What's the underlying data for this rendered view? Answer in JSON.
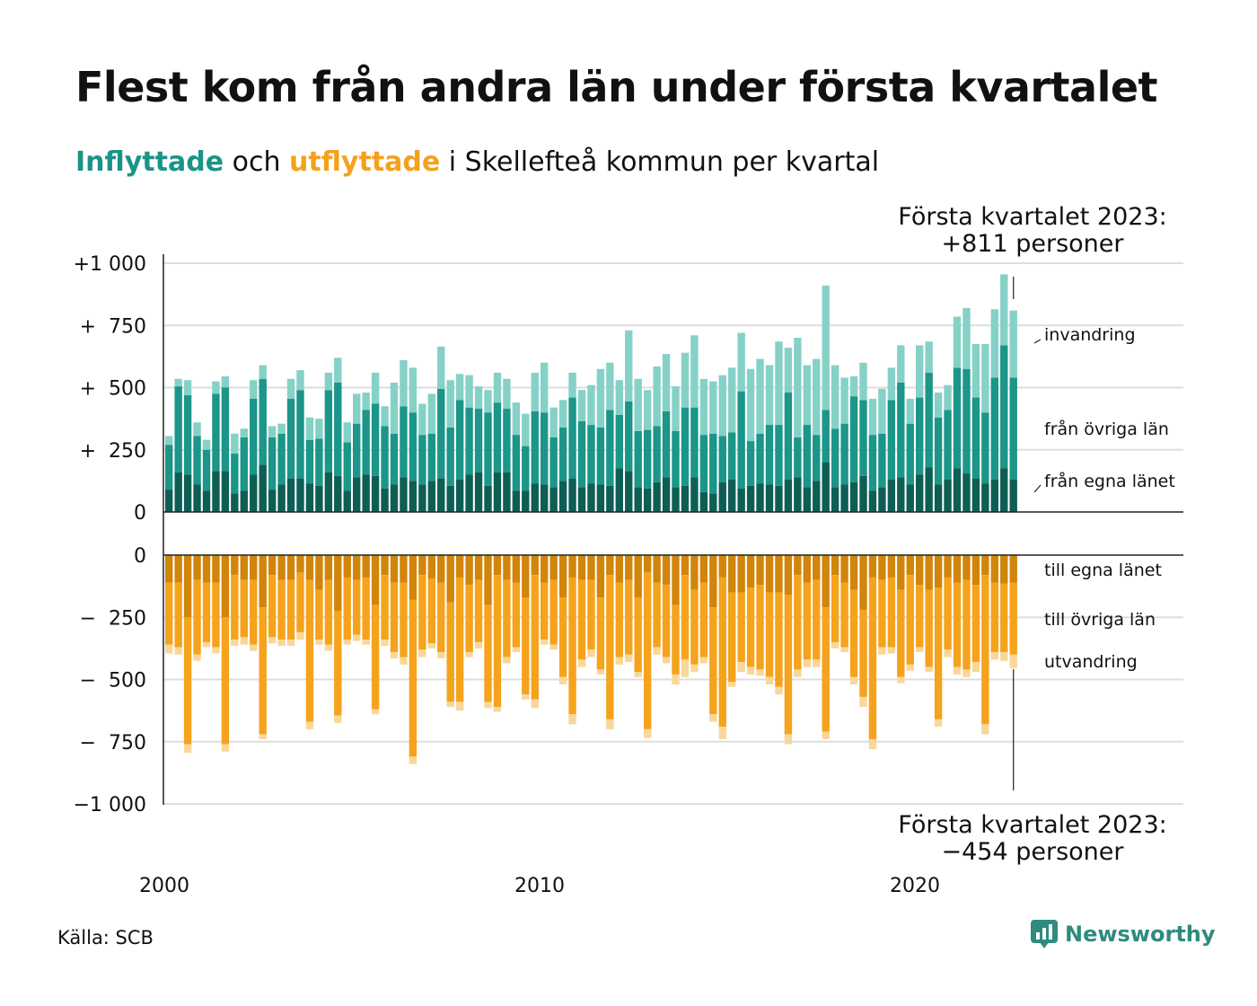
{
  "title": "Flest kom från andra län under första kvartalet",
  "subtitle": {
    "in_word": "Inflyttade",
    "middle": " och ",
    "out_word": "utflyttade",
    "rest": " i Skellefteå kommun per kvartal"
  },
  "colors": {
    "in_local": "#0e5e54",
    "in_region": "#1b9688",
    "in_abroad": "#86d1c7",
    "out_local": "#d1850b",
    "out_region": "#f5a31c",
    "out_abroad": "#f9d79b",
    "grid": "#dddddd",
    "axis": "#222222"
  },
  "annotation_top": {
    "line1": "Första kvartalet 2023:",
    "line2": "+811 personer"
  },
  "annotation_bottom": {
    "line1": "Första kvartalet 2023:",
    "line2": "−454 personer"
  },
  "labels_in": [
    "invandring",
    "från övriga län",
    "från egna länet"
  ],
  "labels_out": [
    "till egna länet",
    "till övriga län",
    "utvandring"
  ],
  "source": "Källa: SCB",
  "brand": "Newsworthy",
  "chart_data": {
    "type": "bar",
    "x_start_year": 2000,
    "quarters_per_year": 4,
    "x_ticks": [
      "2000",
      "2010",
      "2020"
    ],
    "y_ticks_top": [
      "+1 000",
      "+  750",
      "+  500",
      "+  250",
      "0"
    ],
    "y_ticks_bottom": [
      "0",
      "−  250",
      "−  500",
      "−  750",
      "−1 000"
    ],
    "ylim_top": [
      0,
      1000
    ],
    "ylim_bottom": [
      -1000,
      0
    ],
    "series": [
      {
        "name": "från egna länet",
        "group": "in",
        "values": [
          90,
          160,
          150,
          110,
          85,
          165,
          165,
          75,
          85,
          150,
          190,
          90,
          110,
          135,
          135,
          115,
          105,
          160,
          145,
          85,
          140,
          150,
          145,
          95,
          110,
          140,
          125,
          110,
          125,
          135,
          105,
          130,
          150,
          160,
          105,
          160,
          160,
          85,
          85,
          115,
          110,
          100,
          125,
          135,
          100,
          115,
          110,
          105,
          175,
          165,
          100,
          95,
          120,
          140,
          100,
          105,
          140,
          80,
          75,
          120,
          130,
          95,
          105,
          115,
          110,
          105,
          130,
          140,
          100,
          125,
          200,
          100,
          110,
          120,
          145,
          85,
          100,
          130,
          140,
          110,
          150,
          180,
          110,
          130,
          175,
          155,
          135,
          115,
          130,
          175,
          130
        ]
      },
      {
        "name": "från övriga län",
        "group": "in",
        "values": [
          180,
          345,
          320,
          195,
          165,
          310,
          335,
          160,
          215,
          305,
          345,
          210,
          205,
          320,
          355,
          175,
          190,
          330,
          375,
          195,
          215,
          260,
          290,
          250,
          205,
          285,
          275,
          200,
          190,
          360,
          235,
          320,
          270,
          255,
          295,
          280,
          255,
          225,
          180,
          290,
          290,
          200,
          215,
          325,
          265,
          235,
          230,
          305,
          215,
          280,
          225,
          235,
          225,
          265,
          225,
          315,
          280,
          230,
          240,
          185,
          190,
          390,
          180,
          200,
          240,
          245,
          350,
          160,
          250,
          185,
          210,
          235,
          245,
          345,
          305,
          225,
          215,
          320,
          380,
          245,
          310,
          380,
          270,
          280,
          405,
          420,
          325,
          285,
          410,
          495,
          410
        ]
      },
      {
        "name": "invandring",
        "group": "in",
        "values": [
          35,
          30,
          60,
          55,
          40,
          50,
          45,
          80,
          35,
          75,
          55,
          45,
          40,
          80,
          80,
          90,
          80,
          70,
          100,
          80,
          120,
          70,
          125,
          80,
          205,
          185,
          180,
          125,
          160,
          170,
          190,
          105,
          130,
          90,
          90,
          120,
          120,
          130,
          130,
          155,
          200,
          120,
          110,
          100,
          125,
          160,
          235,
          190,
          140,
          285,
          210,
          160,
          240,
          230,
          180,
          220,
          290,
          225,
          210,
          245,
          260,
          235,
          290,
          300,
          240,
          335,
          180,
          400,
          240,
          305,
          500,
          255,
          185,
          80,
          150,
          145,
          180,
          130,
          150,
          100,
          210,
          125,
          100,
          100,
          205,
          245,
          215,
          275,
          275,
          285,
          270
        ]
      },
      {
        "name": "till egna länet",
        "group": "out",
        "values": [
          110,
          110,
          250,
          100,
          110,
          110,
          250,
          80,
          100,
          100,
          210,
          80,
          100,
          100,
          70,
          100,
          140,
          100,
          225,
          90,
          100,
          90,
          200,
          80,
          110,
          110,
          180,
          80,
          95,
          110,
          190,
          90,
          120,
          100,
          200,
          80,
          100,
          110,
          170,
          80,
          110,
          100,
          170,
          90,
          100,
          100,
          170,
          80,
          110,
          100,
          170,
          70,
          110,
          120,
          200,
          80,
          140,
          110,
          210,
          90,
          150,
          150,
          130,
          120,
          150,
          150,
          160,
          80,
          110,
          100,
          210,
          80,
          110,
          140,
          220,
          90,
          100,
          90,
          140,
          80,
          120,
          140,
          130,
          90,
          110,
          100,
          120,
          80,
          110,
          115,
          110
        ]
      },
      {
        "name": "till övriga län",
        "group": "out",
        "values": [
          250,
          260,
          510,
          300,
          240,
          260,
          510,
          260,
          230,
          260,
          510,
          250,
          240,
          240,
          240,
          570,
          200,
          260,
          420,
          250,
          220,
          250,
          420,
          260,
          280,
          300,
          630,
          300,
          260,
          280,
          400,
          500,
          270,
          250,
          390,
          530,
          310,
          260,
          390,
          500,
          230,
          260,
          320,
          550,
          320,
          280,
          290,
          580,
          300,
          300,
          300,
          630,
          260,
          290,
          280,
          340,
          300,
          300,
          430,
          600,
          360,
          280,
          320,
          340,
          340,
          380,
          560,
          380,
          310,
          320,
          500,
          270,
          260,
          350,
          350,
          650,
          270,
          280,
          350,
          360,
          250,
          310,
          530,
          290,
          340,
          360,
          310,
          600,
          280,
          275,
          290
        ]
      },
      {
        "name": "utvandring",
        "group": "out",
        "values": [
          35,
          30,
          35,
          25,
          20,
          25,
          30,
          25,
          30,
          25,
          20,
          25,
          25,
          25,
          30,
          30,
          20,
          25,
          30,
          20,
          25,
          20,
          20,
          25,
          25,
          30,
          30,
          30,
          20,
          25,
          20,
          35,
          20,
          25,
          25,
          20,
          25,
          20,
          20,
          35,
          20,
          20,
          30,
          40,
          30,
          30,
          20,
          40,
          30,
          30,
          20,
          35,
          30,
          25,
          40,
          70,
          30,
          25,
          30,
          50,
          20,
          40,
          30,
          25,
          30,
          30,
          40,
          30,
          30,
          30,
          30,
          25,
          20,
          30,
          40,
          40,
          30,
          25,
          25,
          25,
          20,
          20,
          30,
          30,
          30,
          30,
          40,
          40,
          30,
          35,
          54
        ]
      }
    ]
  }
}
